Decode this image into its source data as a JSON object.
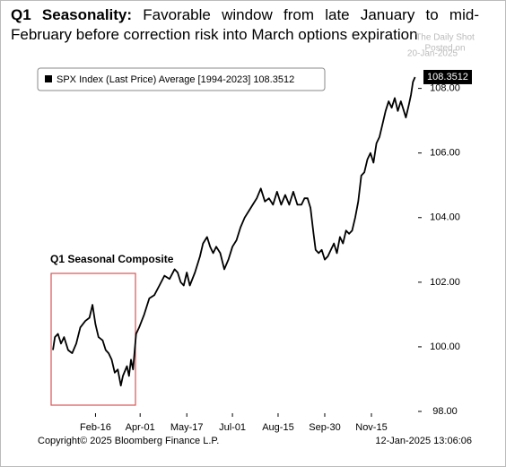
{
  "chart_data": {
    "type": "line",
    "title": "Q1 Seasonality:",
    "subtitle": "Favorable window from late January to mid-February before correction risk into March options expiration",
    "watermark": [
      "Posted on",
      "The Daily Shot",
      "20-Jan-2025"
    ],
    "annotation": "Q1 Seasonal Composite",
    "footer_left": "Copyright© 2025 Bloomberg Finance L.P.",
    "footer_right": "12-Jan-2025 13:06:06",
    "last_value": 108.3512,
    "x": [
      5,
      7,
      10,
      13,
      16,
      20,
      24,
      28,
      32,
      37,
      41,
      44,
      47,
      50,
      54,
      57,
      60,
      63,
      66,
      69,
      72,
      74,
      78,
      80,
      82,
      84,
      87,
      90,
      95,
      100,
      105,
      110,
      115,
      120,
      125,
      128,
      131,
      134,
      137,
      140,
      145,
      150,
      153,
      157,
      160,
      163,
      166,
      170,
      174,
      178,
      182,
      186,
      190,
      194,
      198,
      202,
      206,
      210,
      214,
      218,
      222,
      226,
      230,
      234,
      238,
      242,
      246,
      250,
      253,
      256,
      259,
      262,
      264,
      267,
      270,
      273,
      276,
      279,
      282,
      285,
      288,
      291,
      294,
      297,
      300,
      303,
      306,
      309,
      312,
      315,
      318,
      321,
      324,
      327,
      330,
      333,
      336,
      339,
      342,
      345,
      348,
      351,
      353,
      356,
      358,
      360,
      362
    ],
    "series": [
      {
        "name": "SPX Index (Last Price) Average [1994-2023] 108.3512",
        "color": "#000000",
        "values": [
          99.9,
          100.3,
          100.4,
          100.1,
          100.3,
          99.9,
          99.8,
          100.1,
          100.6,
          100.8,
          100.9,
          101.3,
          100.7,
          100.3,
          100.2,
          99.9,
          99.8,
          99.6,
          99.2,
          99.3,
          98.8,
          99.1,
          99.4,
          99.1,
          99.6,
          99.3,
          100.4,
          100.6,
          101.0,
          101.5,
          101.6,
          101.9,
          102.2,
          102.1,
          102.4,
          102.3,
          102.0,
          101.9,
          102.3,
          101.9,
          102.3,
          102.8,
          103.2,
          103.4,
          103.1,
          102.9,
          103.1,
          102.9,
          102.4,
          102.7,
          103.1,
          103.3,
          103.7,
          104.0,
          104.2,
          104.4,
          104.6,
          104.9,
          104.5,
          104.6,
          104.4,
          104.8,
          104.4,
          104.7,
          104.4,
          104.8,
          104.4,
          104.4,
          104.6,
          104.6,
          104.3,
          103.5,
          103.0,
          102.9,
          103.0,
          102.7,
          102.8,
          103.0,
          103.2,
          102.9,
          103.4,
          103.2,
          103.6,
          103.5,
          103.6,
          104.0,
          104.5,
          105.3,
          105.4,
          105.8,
          106.0,
          105.7,
          106.3,
          106.5,
          106.9,
          107.3,
          107.6,
          107.4,
          107.7,
          107.3,
          107.6,
          107.3,
          107.1,
          107.5,
          107.8,
          108.2,
          108.3512
        ]
      }
    ],
    "xlim": [
      -10,
      365
    ],
    "xticks": [
      {
        "value": 47,
        "label": "Feb-16"
      },
      {
        "value": 91,
        "label": "Apr-01"
      },
      {
        "value": 137,
        "label": "May-17"
      },
      {
        "value": 182,
        "label": "Jul-01"
      },
      {
        "value": 227,
        "label": "Aug-15"
      },
      {
        "value": 273,
        "label": "Sep-30"
      },
      {
        "value": 319,
        "label": "Nov-15"
      }
    ],
    "ylim": [
      98,
      108.6
    ],
    "yticks": [
      {
        "value": 98,
        "label": "98.00"
      },
      {
        "value": 100,
        "label": "100.00"
      },
      {
        "value": 102,
        "label": "102.00"
      },
      {
        "value": 104,
        "label": "104.00"
      },
      {
        "value": 106,
        "label": "106.00"
      },
      {
        "value": 108,
        "label": "108.00"
      }
    ],
    "grid": false
  }
}
